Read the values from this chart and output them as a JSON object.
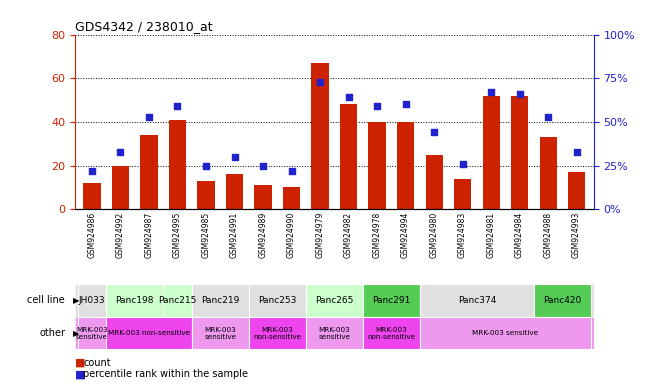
{
  "title": "GDS4342 / 238010_at",
  "gsm_labels": [
    "GSM924986",
    "GSM924992",
    "GSM924987",
    "GSM924995",
    "GSM924985",
    "GSM924991",
    "GSM924989",
    "GSM924990",
    "GSM924979",
    "GSM924982",
    "GSM924978",
    "GSM924994",
    "GSM924980",
    "GSM924983",
    "GSM924981",
    "GSM924984",
    "GSM924988",
    "GSM924993"
  ],
  "counts": [
    12,
    20,
    34,
    41,
    13,
    16,
    11,
    10,
    67,
    48,
    40,
    40,
    25,
    14,
    52,
    52,
    33,
    17
  ],
  "percentiles": [
    22,
    33,
    53,
    59,
    25,
    30,
    25,
    22,
    73,
    64,
    59,
    60,
    44,
    26,
    67,
    66,
    53,
    33
  ],
  "bar_color": "#cc2200",
  "dot_color": "#2222cc",
  "left_ylim": [
    0,
    80
  ],
  "right_ylim": [
    0,
    100
  ],
  "left_yticks": [
    0,
    20,
    40,
    60,
    80
  ],
  "right_yticks": [
    0,
    25,
    50,
    75,
    100
  ],
  "right_yticklabels": [
    "0%",
    "25%",
    "50%",
    "75%",
    "100%"
  ],
  "cell_lines": [
    {
      "name": "JH033",
      "start": 0,
      "end": 1,
      "color": "#e0e0e0"
    },
    {
      "name": "Panc198",
      "start": 1,
      "end": 3,
      "color": "#ccffcc"
    },
    {
      "name": "Panc215",
      "start": 3,
      "end": 4,
      "color": "#ccffcc"
    },
    {
      "name": "Panc219",
      "start": 4,
      "end": 6,
      "color": "#e0e0e0"
    },
    {
      "name": "Panc253",
      "start": 6,
      "end": 8,
      "color": "#e0e0e0"
    },
    {
      "name": "Panc265",
      "start": 8,
      "end": 10,
      "color": "#ccffcc"
    },
    {
      "name": "Panc291",
      "start": 10,
      "end": 12,
      "color": "#55cc55"
    },
    {
      "name": "Panc374",
      "start": 12,
      "end": 16,
      "color": "#e0e0e0"
    },
    {
      "name": "Panc420",
      "start": 16,
      "end": 18,
      "color": "#55cc55"
    }
  ],
  "other_groups": [
    {
      "label": "MRK-003\nsensitive",
      "start": 0,
      "end": 1,
      "color": "#ee99ee"
    },
    {
      "label": "MRK-003 non-sensitive",
      "start": 1,
      "end": 4,
      "color": "#ee44ee"
    },
    {
      "label": "MRK-003\nsensitive",
      "start": 4,
      "end": 6,
      "color": "#ee99ee"
    },
    {
      "label": "MRK-003\nnon-sensitive",
      "start": 6,
      "end": 8,
      "color": "#ee44ee"
    },
    {
      "label": "MRK-003\nsensitive",
      "start": 8,
      "end": 10,
      "color": "#ee99ee"
    },
    {
      "label": "MRK-003\nnon-sensitive",
      "start": 10,
      "end": 12,
      "color": "#ee44ee"
    },
    {
      "label": "MRK-003 sensitive",
      "start": 12,
      "end": 18,
      "color": "#ee99ee"
    }
  ],
  "axis_color_left": "#cc2200",
  "axis_color_right": "#2222cc",
  "cell_line_label": "cell line",
  "other_label": "other",
  "plot_bg": "#ffffff",
  "fig_bg": "#ffffff"
}
